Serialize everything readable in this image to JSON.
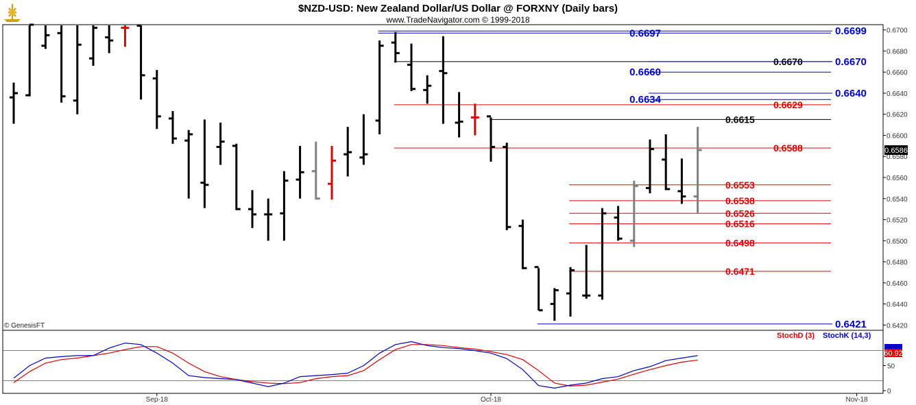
{
  "header": {
    "title": "$NZD-USD:  New Zealand Dollar/US Dollar @ FORXNY  (Daily bars)",
    "subtitle": "www.TradeNavigator.com © 1999-2018"
  },
  "copyright": "© GenesisFT",
  "colors": {
    "up_bar": "#000000",
    "down_bar": "#e00000",
    "neutral_bar": "#808080",
    "blue_level": "#0000cc",
    "red_level": "#e00000",
    "black_level": "#000000",
    "stoch_k": "#0000cc",
    "stoch_d": "#e00000"
  },
  "chart_data": [
    {
      "type": "ohlc",
      "symbol": "$NZD-USD",
      "ylim": [
        0.6415,
        0.6705
      ],
      "y_ticks": [
        "0.6700",
        "0.6680",
        "0.6660",
        "0.6640",
        "0.6620",
        "0.6600",
        "0.6580",
        "0.6560",
        "0.6540",
        "0.6520",
        "0.6500",
        "0.6480",
        "0.6460",
        "0.6440",
        "0.6420"
      ],
      "x_tick_labels": [
        {
          "label": "Sep-18",
          "bar_index": 9
        },
        {
          "label": "Oct-18",
          "bar_index": 30
        },
        {
          "label": "Nov-18",
          "bar_index": 53
        }
      ],
      "last_price": "0.6586",
      "bars": [
        {
          "o": 0.6636,
          "h": 0.665,
          "l": 0.6611,
          "c": 0.664,
          "color": "up"
        },
        {
          "o": 0.6638,
          "h": 0.6705,
          "l": 0.6637,
          "c": 0.6705,
          "color": "up"
        },
        {
          "o": 0.6685,
          "h": 0.6705,
          "l": 0.6682,
          "c": 0.6695,
          "color": "up"
        },
        {
          "o": 0.6697,
          "h": 0.6705,
          "l": 0.6631,
          "c": 0.6637,
          "color": "up"
        },
        {
          "o": 0.6633,
          "h": 0.6705,
          "l": 0.662,
          "c": 0.6686,
          "color": "up"
        },
        {
          "o": 0.6673,
          "h": 0.6705,
          "l": 0.6666,
          "c": 0.6702,
          "color": "up"
        },
        {
          "o": 0.6693,
          "h": 0.6705,
          "l": 0.6678,
          "c": 0.669,
          "color": "up"
        },
        {
          "o": 0.6702,
          "h": 0.6705,
          "l": 0.6684,
          "c": 0.6702,
          "color": "down"
        },
        {
          "o": 0.6704,
          "h": 0.6705,
          "l": 0.6634,
          "c": 0.6657,
          "color": "up"
        },
        {
          "o": 0.6654,
          "h": 0.6662,
          "l": 0.6606,
          "c": 0.6618,
          "color": "up"
        },
        {
          "o": 0.6616,
          "h": 0.6623,
          "l": 0.6592,
          "c": 0.6597,
          "color": "up"
        },
        {
          "o": 0.6595,
          "h": 0.6605,
          "l": 0.654,
          "c": 0.6601,
          "color": "up"
        },
        {
          "o": 0.6555,
          "h": 0.6615,
          "l": 0.6531,
          "c": 0.6553,
          "color": "up"
        },
        {
          "o": 0.6589,
          "h": 0.6612,
          "l": 0.6572,
          "c": 0.6594,
          "color": "up"
        },
        {
          "o": 0.659,
          "h": 0.6592,
          "l": 0.6529,
          "c": 0.653,
          "color": "up"
        },
        {
          "o": 0.653,
          "h": 0.6548,
          "l": 0.6512,
          "c": 0.6525,
          "color": "up"
        },
        {
          "o": 0.6525,
          "h": 0.654,
          "l": 0.65,
          "c": 0.6525,
          "color": "up"
        },
        {
          "o": 0.6526,
          "h": 0.6566,
          "l": 0.65,
          "c": 0.6557,
          "color": "up"
        },
        {
          "o": 0.6558,
          "h": 0.659,
          "l": 0.654,
          "c": 0.6565,
          "color": "up"
        },
        {
          "o": 0.6566,
          "h": 0.6594,
          "l": 0.6539,
          "c": 0.654,
          "color": "neutral"
        },
        {
          "o": 0.6554,
          "h": 0.659,
          "l": 0.6539,
          "c": 0.6576,
          "color": "down"
        },
        {
          "o": 0.6582,
          "h": 0.6608,
          "l": 0.6561,
          "c": 0.6584,
          "color": "up"
        },
        {
          "o": 0.6579,
          "h": 0.662,
          "l": 0.6572,
          "c": 0.6582,
          "color": "up"
        },
        {
          "o": 0.6614,
          "h": 0.669,
          "l": 0.6601,
          "c": 0.6685,
          "color": "up"
        },
        {
          "o": 0.6688,
          "h": 0.6698,
          "l": 0.6669,
          "c": 0.6678,
          "color": "up"
        },
        {
          "o": 0.6667,
          "h": 0.6687,
          "l": 0.6642,
          "c": 0.6644,
          "color": "up"
        },
        {
          "o": 0.6643,
          "h": 0.6657,
          "l": 0.663,
          "c": 0.6647,
          "color": "up"
        },
        {
          "o": 0.6661,
          "h": 0.6694,
          "l": 0.6611,
          "c": 0.6659,
          "color": "up"
        },
        {
          "o": 0.6612,
          "h": 0.6641,
          "l": 0.6598,
          "c": 0.6613,
          "color": "up"
        },
        {
          "o": 0.6617,
          "h": 0.663,
          "l": 0.66,
          "c": 0.6617,
          "color": "down"
        },
        {
          "o": 0.6618,
          "h": 0.6617,
          "l": 0.6575,
          "c": 0.6589,
          "color": "up"
        },
        {
          "o": 0.6589,
          "h": 0.6593,
          "l": 0.651,
          "c": 0.6513,
          "color": "up"
        },
        {
          "o": 0.6514,
          "h": 0.652,
          "l": 0.6473,
          "c": 0.6474,
          "color": "up"
        },
        {
          "o": 0.6475,
          "h": 0.6474,
          "l": 0.6434,
          "c": 0.6434,
          "color": "up"
        },
        {
          "o": 0.644,
          "h": 0.6455,
          "l": 0.6424,
          "c": 0.6453,
          "color": "up"
        },
        {
          "o": 0.645,
          "h": 0.6475,
          "l": 0.6428,
          "c": 0.6472,
          "color": "up"
        },
        {
          "o": 0.6448,
          "h": 0.6496,
          "l": 0.6445,
          "c": 0.6448,
          "color": "up"
        },
        {
          "o": 0.6448,
          "h": 0.6531,
          "l": 0.6444,
          "c": 0.6526,
          "color": "up"
        },
        {
          "o": 0.6522,
          "h": 0.6533,
          "l": 0.65,
          "c": 0.6502,
          "color": "up"
        },
        {
          "o": 0.65,
          "h": 0.6557,
          "l": 0.6494,
          "c": 0.6552,
          "color": "neutral"
        },
        {
          "o": 0.655,
          "h": 0.6596,
          "l": 0.6545,
          "c": 0.6587,
          "color": "up"
        },
        {
          "o": 0.6577,
          "h": 0.6601,
          "l": 0.6548,
          "c": 0.6549,
          "color": "up"
        },
        {
          "o": 0.6547,
          "h": 0.6578,
          "l": 0.6535,
          "c": 0.6542,
          "color": "up"
        },
        {
          "o": 0.6542,
          "h": 0.6608,
          "l": 0.6526,
          "c": 0.6586,
          "color": "neutral"
        }
      ],
      "levels": [
        {
          "value": 0.6697,
          "label": "0.6697",
          "color": "blue",
          "from_bar": 23
        },
        {
          "value": 0.6699,
          "label": "0.6699",
          "color": "blue",
          "from_bar": 23
        },
        {
          "value": 0.667,
          "label": "0.6670",
          "color": "black",
          "from_bar": 24
        },
        {
          "value": 0.667,
          "label": "0.6670",
          "color": "blue",
          "from_bar": 40
        },
        {
          "value": 0.666,
          "label": "0.6660",
          "color": "blue",
          "from_bar": 40
        },
        {
          "value": 0.664,
          "label": "0.6640",
          "color": "blue",
          "from_bar": 40
        },
        {
          "value": 0.6634,
          "label": "0.6634",
          "color": "blue",
          "from_bar": 40
        },
        {
          "value": 0.6629,
          "label": "0.6629",
          "color": "red",
          "from_bar": 24
        },
        {
          "value": 0.6615,
          "label": "0.6615",
          "color": "black",
          "from_bar": 30
        },
        {
          "value": 0.6588,
          "label": "0.6588",
          "color": "red",
          "from_bar": 24
        },
        {
          "value": 0.6553,
          "label": "0.6553",
          "color": "red",
          "from_bar": 35
        },
        {
          "value": 0.6538,
          "label": "0.6538",
          "color": "red",
          "from_bar": 35
        },
        {
          "value": 0.6526,
          "label": "0.6526",
          "color": "red",
          "from_bar": 35
        },
        {
          "value": 0.6516,
          "label": "0.6516",
          "color": "red",
          "from_bar": 35
        },
        {
          "value": 0.6498,
          "label": "0.6498",
          "color": "red",
          "from_bar": 35
        },
        {
          "value": 0.6471,
          "label": "0.6471",
          "color": "red",
          "from_bar": 35
        },
        {
          "value": 0.6421,
          "label": "0.6421",
          "color": "blue",
          "from_bar": 33
        }
      ]
    },
    {
      "type": "line",
      "indicator": "stochastic",
      "ylim": [
        0,
        100
      ],
      "y_ticks": [
        "50",
        "0"
      ],
      "d_label": "StochD (3)",
      "k_label": "StochK (14,3)",
      "last_d_value": "60.92",
      "series": [
        {
          "key": "k",
          "values": [
            25,
            50,
            65,
            68,
            70,
            70,
            85,
            95,
            92,
            75,
            55,
            30,
            26,
            24,
            22,
            15,
            8,
            15,
            28,
            30,
            32,
            35,
            50,
            75,
            92,
            98,
            90,
            86,
            84,
            80,
            75,
            64,
            42,
            10,
            5,
            11,
            15,
            24,
            28,
            40,
            48,
            60,
            65,
            70
          ]
        },
        {
          "key": "d",
          "values": [
            16,
            38,
            55,
            62,
            65,
            70,
            75,
            82,
            88,
            88,
            75,
            55,
            38,
            28,
            22,
            18,
            15,
            14,
            16,
            24,
            28,
            30,
            40,
            62,
            82,
            92,
            92,
            90,
            86,
            83,
            78,
            72,
            62,
            40,
            15,
            9,
            11,
            17,
            23,
            33,
            42,
            50,
            57,
            61
          ]
        }
      ]
    }
  ]
}
